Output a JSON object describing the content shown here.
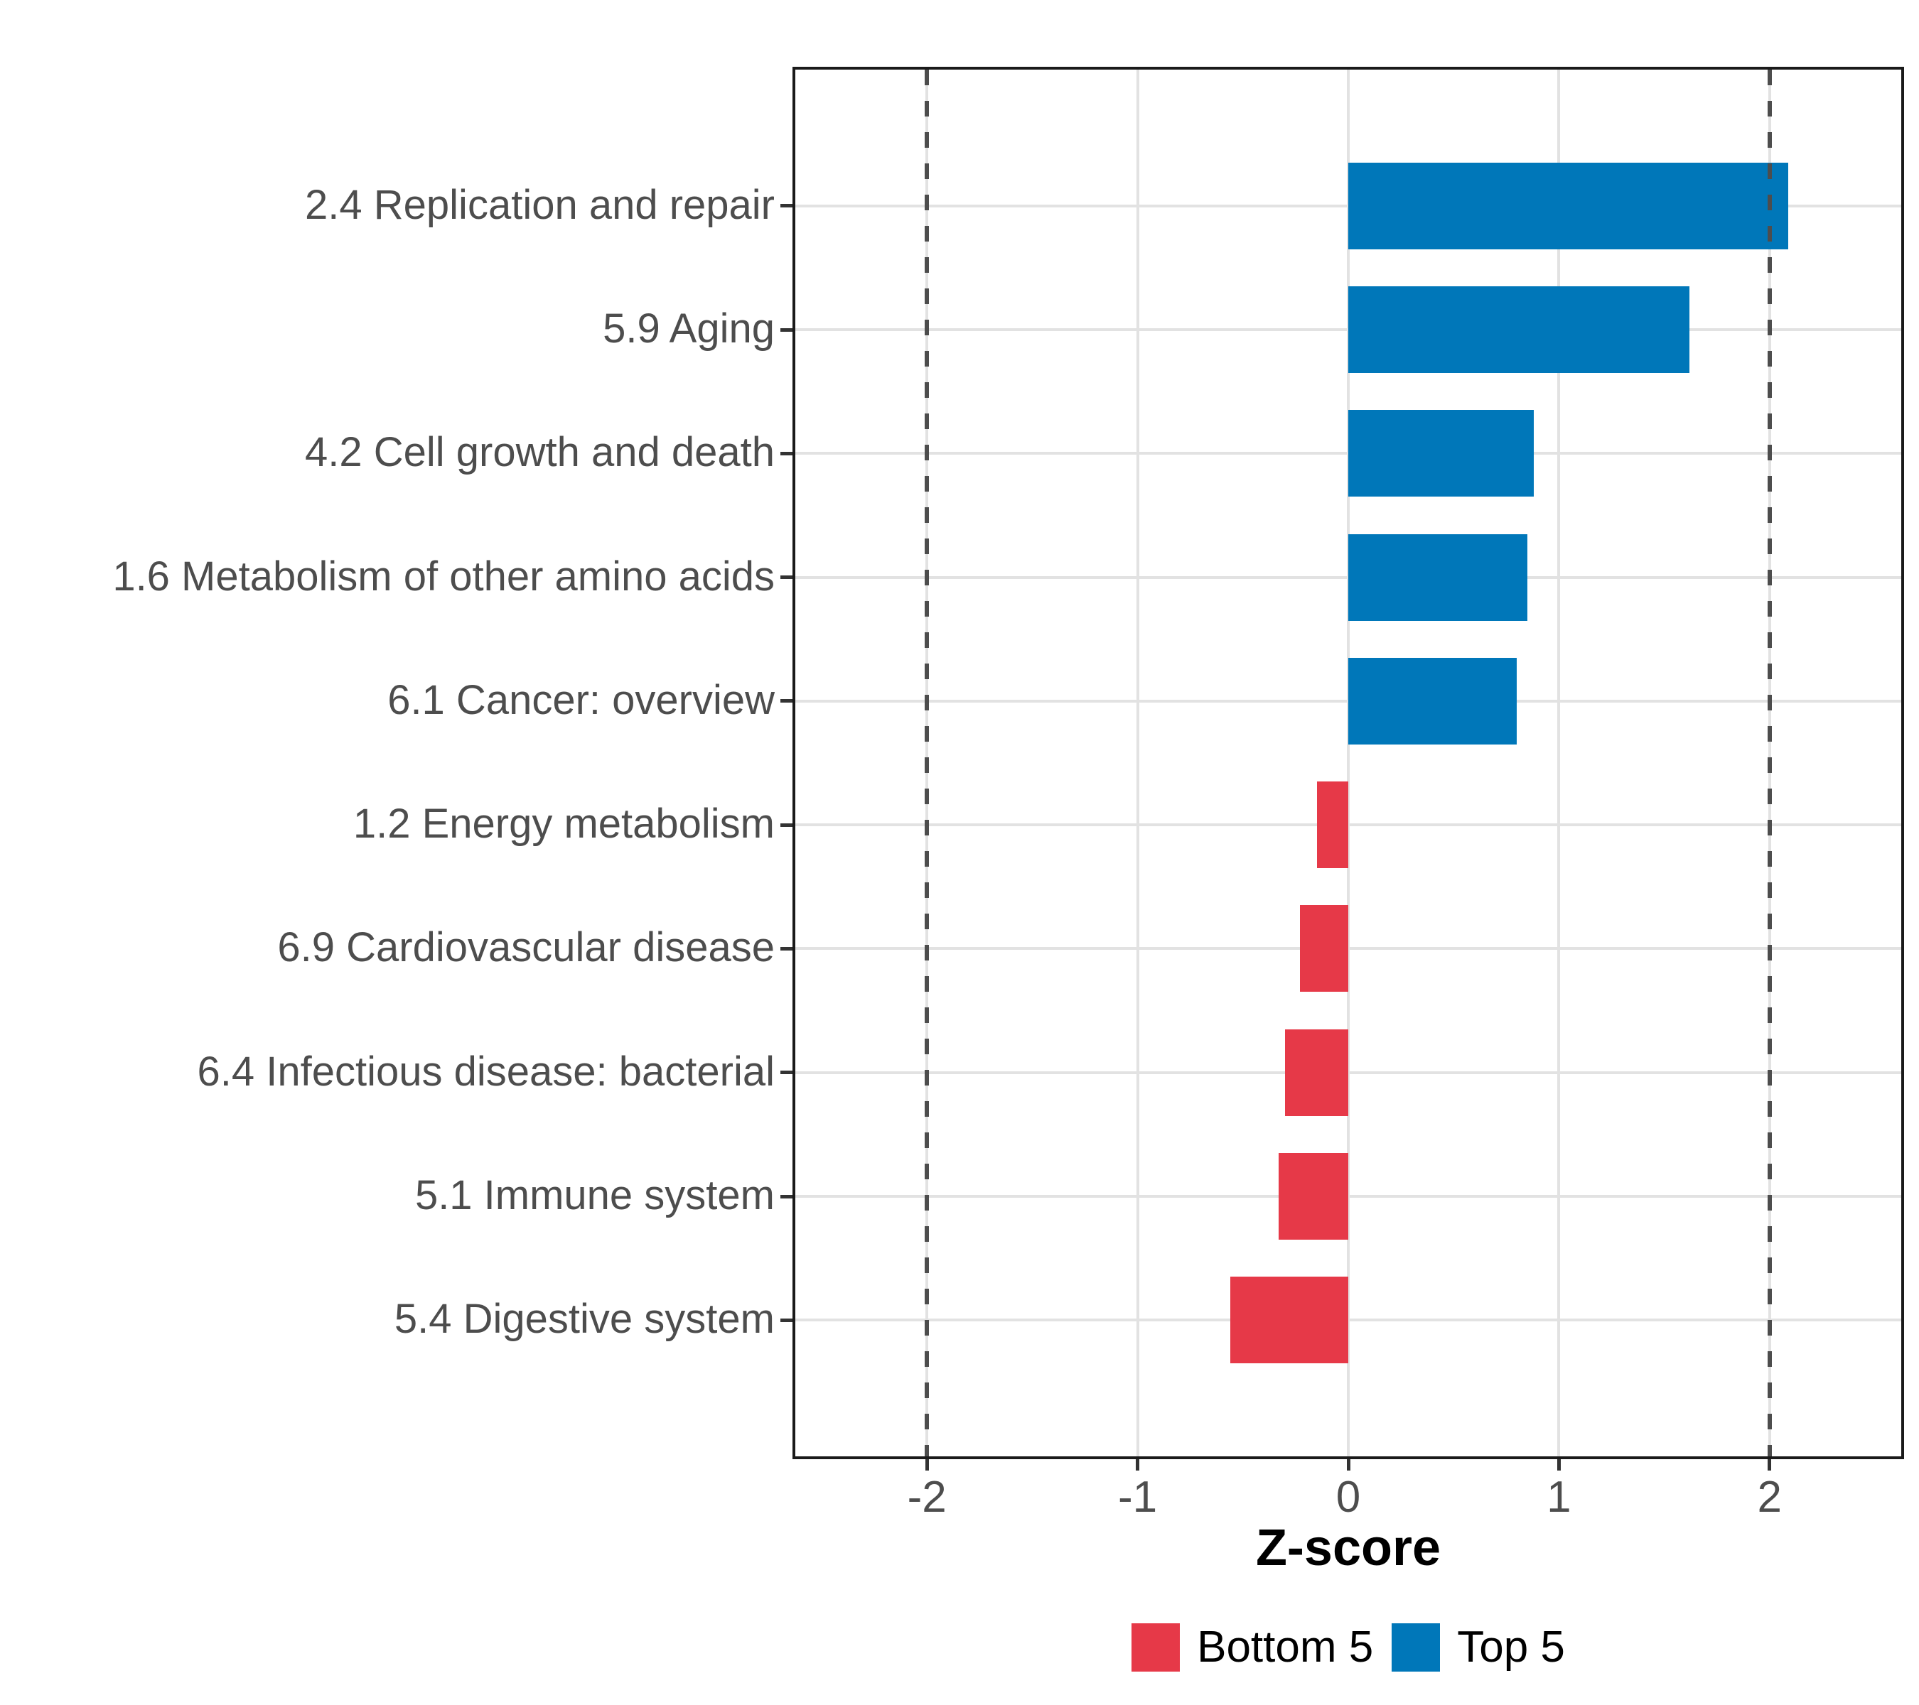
{
  "chart_data": {
    "type": "bar",
    "orientation": "horizontal",
    "title": "",
    "xlabel": "Z-score",
    "ylabel": "",
    "categories": [
      "2.4 Replication and repair",
      "5.9 Aging",
      "4.2 Cell growth and death",
      "1.6 Metabolism of other amino acids",
      "6.1 Cancer: overview",
      "1.2 Energy metabolism",
      "6.9 Cardiovascular disease",
      "6.4 Infectious disease: bacterial",
      "5.1 Immune system",
      "5.4 Digestive system"
    ],
    "values": [
      2.09,
      1.62,
      0.88,
      0.85,
      0.8,
      -0.15,
      -0.23,
      -0.3,
      -0.33,
      -0.56
    ],
    "groups": [
      "Top 5",
      "Top 5",
      "Top 5",
      "Top 5",
      "Top 5",
      "Bottom 5",
      "Bottom 5",
      "Bottom 5",
      "Bottom 5",
      "Bottom 5"
    ],
    "xlim": [
      -2.625,
      2.625
    ],
    "x_ticks": [
      -2,
      -1,
      0,
      1,
      2
    ],
    "x_tick_labels": [
      "-2",
      "-1",
      "0",
      "1",
      "2"
    ],
    "reference_lines": [
      -2,
      2
    ],
    "grid": "major-only",
    "legend_position": "bottom",
    "legend": [
      {
        "label": "Bottom 5",
        "color": "#e63948"
      },
      {
        "label": "Top 5",
        "color": "#0077b9"
      }
    ],
    "colors": {
      "top5": "#0077b9",
      "bottom5": "#e63948",
      "gridline": "#e2e2e2",
      "reference_line": "#4d4d4d",
      "axis_text": "#4d4d4d",
      "panel_border": "#1a1a1a",
      "tick_mark": "#333333",
      "background": "#ffffff"
    }
  }
}
